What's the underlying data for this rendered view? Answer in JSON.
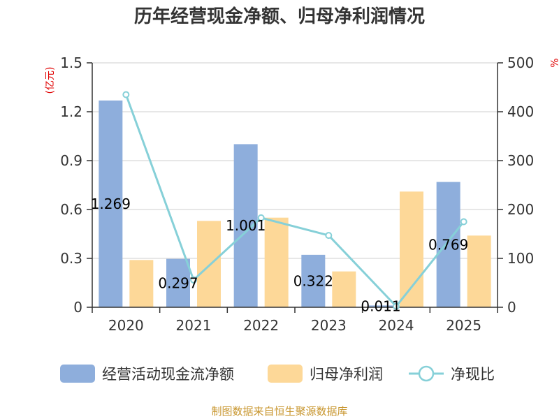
{
  "chart_data": {
    "type": "bar+line",
    "title": "历年经营现金净额、归母净利润情况",
    "categories": [
      "2020",
      "2021",
      "2022",
      "2023",
      "2024",
      "2025"
    ],
    "series": [
      {
        "name": "经营活动现金流净额",
        "kind": "bar",
        "axis": "left",
        "color": "#8eaedc",
        "values": [
          1.269,
          0.297,
          1.001,
          0.322,
          0.011,
          0.769
        ]
      },
      {
        "name": "归母净利润",
        "kind": "bar",
        "axis": "left",
        "color": "#fdd898",
        "values": [
          0.29,
          0.53,
          0.55,
          0.22,
          0.71,
          0.44
        ]
      },
      {
        "name": "净现比",
        "kind": "line",
        "axis": "right",
        "color": "#86d0d8",
        "values": [
          435,
          56,
          183,
          147,
          2,
          175
        ]
      }
    ],
    "data_labels": [
      "1.269",
      "0.297",
      "1.001",
      "0.322",
      "0.011",
      "0.769"
    ],
    "y_left": {
      "label": "(亿元)",
      "min": 0,
      "max": 1.5,
      "ticks": [
        0,
        0.3,
        0.6,
        0.9,
        1.2,
        1.5
      ],
      "tick_labels": [
        "0",
        "0.3",
        "0.6",
        "0.9",
        "1.2",
        "1.5"
      ]
    },
    "y_right": {
      "label": "%",
      "min": 0,
      "max": 500,
      "ticks": [
        0,
        100,
        200,
        300,
        400,
        500
      ],
      "tick_labels": [
        "0",
        "100",
        "200",
        "300",
        "400",
        "500"
      ]
    },
    "grid": true,
    "legend_position": "bottom",
    "source": "制图数据来自恒生聚源数据库"
  }
}
